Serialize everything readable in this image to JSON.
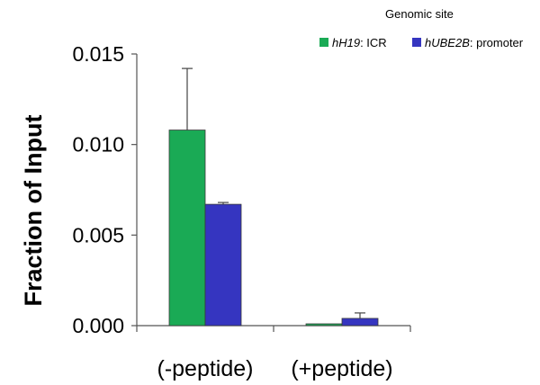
{
  "chart_data": {
    "type": "bar",
    "categories": [
      "(-peptide)",
      "(+peptide)"
    ],
    "series": [
      {
        "name_italic": "hH19",
        "name_rest": ": ICR",
        "color": "#1aaa55",
        "values": [
          0.0108,
          0.0001
        ],
        "errors": [
          0.0034,
          0.0
        ]
      },
      {
        "name_italic": "hUBE2B",
        "name_rest": ": promoter",
        "color": "#3535c0",
        "values": [
          0.0067,
          0.0004
        ],
        "errors": [
          0.0001,
          0.0003
        ]
      }
    ],
    "legend_title": "Genomic site",
    "ylabel": "Fraction of  Input",
    "xlabel": "",
    "ylim": [
      0,
      0.015
    ],
    "yticks": [
      {
        "value": 0.0,
        "label": "0.000"
      },
      {
        "value": 0.005,
        "label": "0.005"
      },
      {
        "value": 0.01,
        "label": "0.010"
      },
      {
        "value": 0.015,
        "label": "0.015"
      }
    ],
    "grid": false,
    "legend_position": "top-right"
  }
}
